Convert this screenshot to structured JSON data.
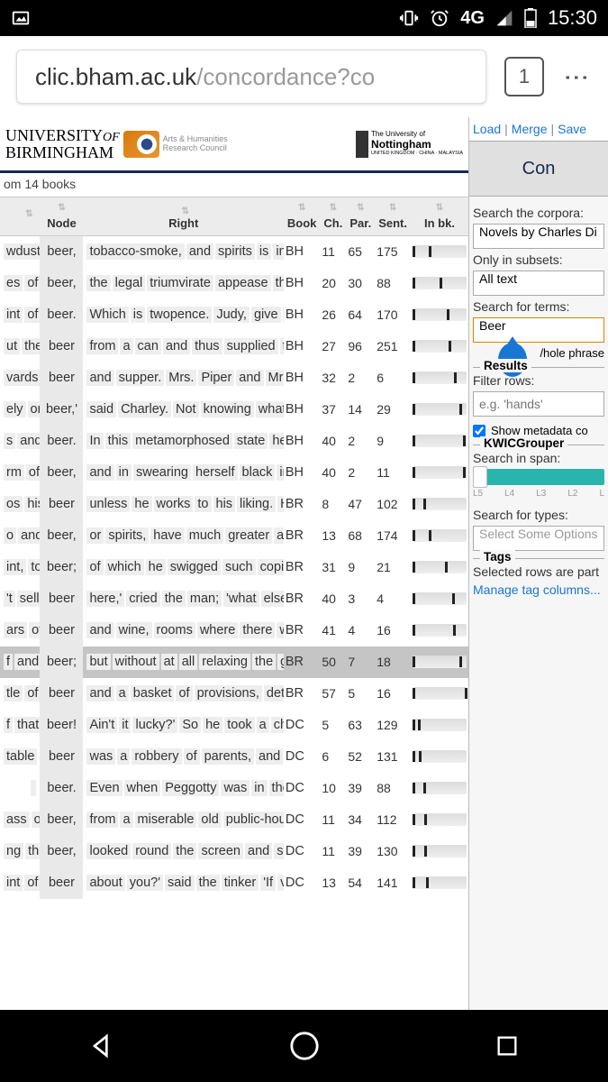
{
  "status": {
    "time": "15:30",
    "net": "4G"
  },
  "browser": {
    "url_host": "clic.bham.ac.uk",
    "url_path": "/concordance?co",
    "tabs": "1"
  },
  "header": {
    "birmingham_top": "UNIVERSITY",
    "birmingham_of": "OF",
    "birmingham_bottom": "BIRMINGHAM",
    "ahrc_line1": "Arts & Humanities",
    "ahrc_line2": "Research Council",
    "nott_pre": "The University of",
    "nott_main": "Nottingham",
    "nott_sub": "UNITED KINGDOM · CHINA · MALAYSIA"
  },
  "count_text": "om 14 books",
  "table": {
    "cols": {
      "node": "Node",
      "right": "Right",
      "book": "Book",
      "ch": "Ch.",
      "par": "Par.",
      "sent": "Sent.",
      "inbk": "In bk."
    },
    "rows": [
      {
        "left": "wdust,",
        "node": "beer,",
        "right": [
          "tobacco-smoke,",
          "and",
          "spirits",
          "is",
          "in"
        ],
        "book": "BH",
        "ch": "11",
        "par": "65",
        "sent": "175",
        "sp": 18
      },
      {
        "left": "es of",
        "node": "beer,",
        "right": [
          "the",
          "legal",
          "triumvirate",
          "appease",
          "the"
        ],
        "book": "BH",
        "ch": "20",
        "par": "30",
        "sent": "88",
        "sp": 30
      },
      {
        "left": "int of",
        "node": "beer.",
        "right": [
          "Which",
          "is",
          "twopence.",
          "Judy,",
          "give",
          "th"
        ],
        "book": "BH",
        "ch": "26",
        "par": "64",
        "sent": "170",
        "sp": 38
      },
      {
        "left": "ut the",
        "node": "beer",
        "right": [
          "from",
          "a",
          "can",
          "and",
          "thus",
          "supplied",
          "th"
        ],
        "book": "BH",
        "ch": "27",
        "par": "96",
        "sent": "251",
        "sp": 40
      },
      {
        "left": "vards",
        "node": "beer",
        "right": [
          "and",
          "supper.",
          "Mrs.",
          "Piper",
          "and",
          "Mrs."
        ],
        "book": "BH",
        "ch": "32",
        "par": "2",
        "sent": "6",
        "sp": 46
      },
      {
        "left": "ely on",
        "node": "beer,'",
        "right": [
          "said",
          "Charley.",
          "Not",
          "knowing",
          "what",
          "r"
        ],
        "book": "BH",
        "ch": "37",
        "par": "14",
        "sent": "29",
        "sp": 52
      },
      {
        "left": "s and",
        "node": "beer.",
        "right": [
          "In",
          "this",
          "metamorphosed",
          "state",
          "he"
        ],
        "book": "BH",
        "ch": "40",
        "par": "2",
        "sent": "9",
        "sp": 56
      },
      {
        "left": "rm of",
        "node": "beer,",
        "right": [
          "and",
          "in",
          "swearing",
          "herself",
          "black",
          "in"
        ],
        "book": "BH",
        "ch": "40",
        "par": "2",
        "sent": "11",
        "sp": 56
      },
      {
        "left": "os his",
        "node": "beer",
        "right": [
          "unless",
          "he",
          "works",
          "to",
          "his",
          "liking.",
          "He"
        ],
        "book": "BR",
        "ch": "8",
        "par": "47",
        "sent": "102",
        "sp": 12
      },
      {
        "left": "o and",
        "node": "beer,",
        "right": [
          "or",
          "spirits,",
          "have",
          "much",
          "greater",
          "att"
        ],
        "book": "BR",
        "ch": "13",
        "par": "68",
        "sent": "174",
        "sp": 18
      },
      {
        "left": "int, to",
        "node": "beer;",
        "right": [
          "of",
          "which",
          "he",
          "swigged",
          "such",
          "copic"
        ],
        "book": "BR",
        "ch": "31",
        "par": "9",
        "sent": "21",
        "sp": 36
      },
      {
        "left": "'t sell",
        "node": "beer",
        "right": [
          "here,'",
          "cried",
          "the",
          "man;",
          "'what",
          "else",
          "d"
        ],
        "book": "BR",
        "ch": "40",
        "par": "3",
        "sent": "4",
        "sp": 44
      },
      {
        "left": "ars of",
        "node": "beer",
        "right": [
          "and",
          "wine,",
          "rooms",
          "where",
          "there",
          "we"
        ],
        "book": "BR",
        "ch": "41",
        "par": "4",
        "sent": "16",
        "sp": 45
      },
      {
        "left": "f and",
        "node": "beer;",
        "right": [
          "but",
          "without",
          "at",
          "all",
          "relaxing",
          "the",
          "gri"
        ],
        "book": "BR",
        "ch": "50",
        "par": "7",
        "sent": "18",
        "sp": 52,
        "hl": true
      },
      {
        "left": "tle of",
        "node": "beer",
        "right": [
          "and",
          "a",
          "basket",
          "of",
          "provisions,",
          "dete"
        ],
        "book": "BR",
        "ch": "57",
        "par": "5",
        "sent": "16",
        "sp": 58
      },
      {
        "left": "f that",
        "node": "beer!",
        "right": [
          "Ain't",
          "it",
          "lucky?'",
          "So",
          "he",
          "took",
          "a",
          "chop"
        ],
        "book": "DC",
        "ch": "5",
        "par": "63",
        "sent": "129",
        "sp": 6
      },
      {
        "left": "table",
        "node": "beer",
        "right": [
          "was",
          "a",
          "robbery",
          "of",
          "parents,",
          "and",
          "th"
        ],
        "book": "DC",
        "ch": "6",
        "par": "52",
        "sent": "131",
        "sp": 7
      },
      {
        "left": "",
        "node": "beer.",
        "right": [
          "Even",
          "when",
          "Peggotty",
          "was",
          "in",
          "the"
        ],
        "book": "DC",
        "ch": "10",
        "par": "39",
        "sent": "88",
        "sp": 12
      },
      {
        "left": "ass of",
        "node": "beer,",
        "right": [
          "from",
          "a",
          "miserable",
          "old",
          "public-hous"
        ],
        "book": "DC",
        "ch": "11",
        "par": "34",
        "sent": "112",
        "sp": 13
      },
      {
        "left": "ng the",
        "node": "beer,",
        "right": [
          "looked",
          "round",
          "the",
          "screen",
          "and",
          "sa"
        ],
        "book": "DC",
        "ch": "11",
        "par": "39",
        "sent": "130",
        "sp": 13
      },
      {
        "left": "int of",
        "node": "beer",
        "right": [
          "about",
          "you?'",
          "said",
          "the",
          "tinker",
          "'If",
          "vo"
        ],
        "book": "DC",
        "ch": "13",
        "par": "54",
        "sent": "141",
        "sp": 15
      }
    ]
  },
  "side": {
    "links": {
      "load": "Load",
      "merge": "Merge",
      "save": "Save"
    },
    "title": "Con",
    "search_label": "Search the corpora:",
    "corpus": "Novels by Charles Di",
    "subsets_label": "Only in subsets:",
    "subset": "All text",
    "terms_label": "Search for terms:",
    "term": "Beer",
    "whole_phrase": "/hole phrase",
    "results_legend": "Results",
    "filter_label": "Filter rows:",
    "filter_placeholder": "e.g. 'hands'",
    "show_meta": "Show metadata co",
    "kwic_legend": "KWICGrouper",
    "span_label": "Search in span:",
    "span_ticks": [
      "L5",
      "L4",
      "L3",
      "L2",
      "L"
    ],
    "types_label": "Search for types:",
    "types_placeholder": "Select Some Options",
    "tags_legend": "Tags",
    "tags_text": "Selected rows are part",
    "manage_tags": "Manage tag columns..."
  },
  "colors": {
    "link": "#1976d2",
    "accent": "#2ab5ac",
    "term_border": "#d88500",
    "header_navy": "#1a2850"
  }
}
